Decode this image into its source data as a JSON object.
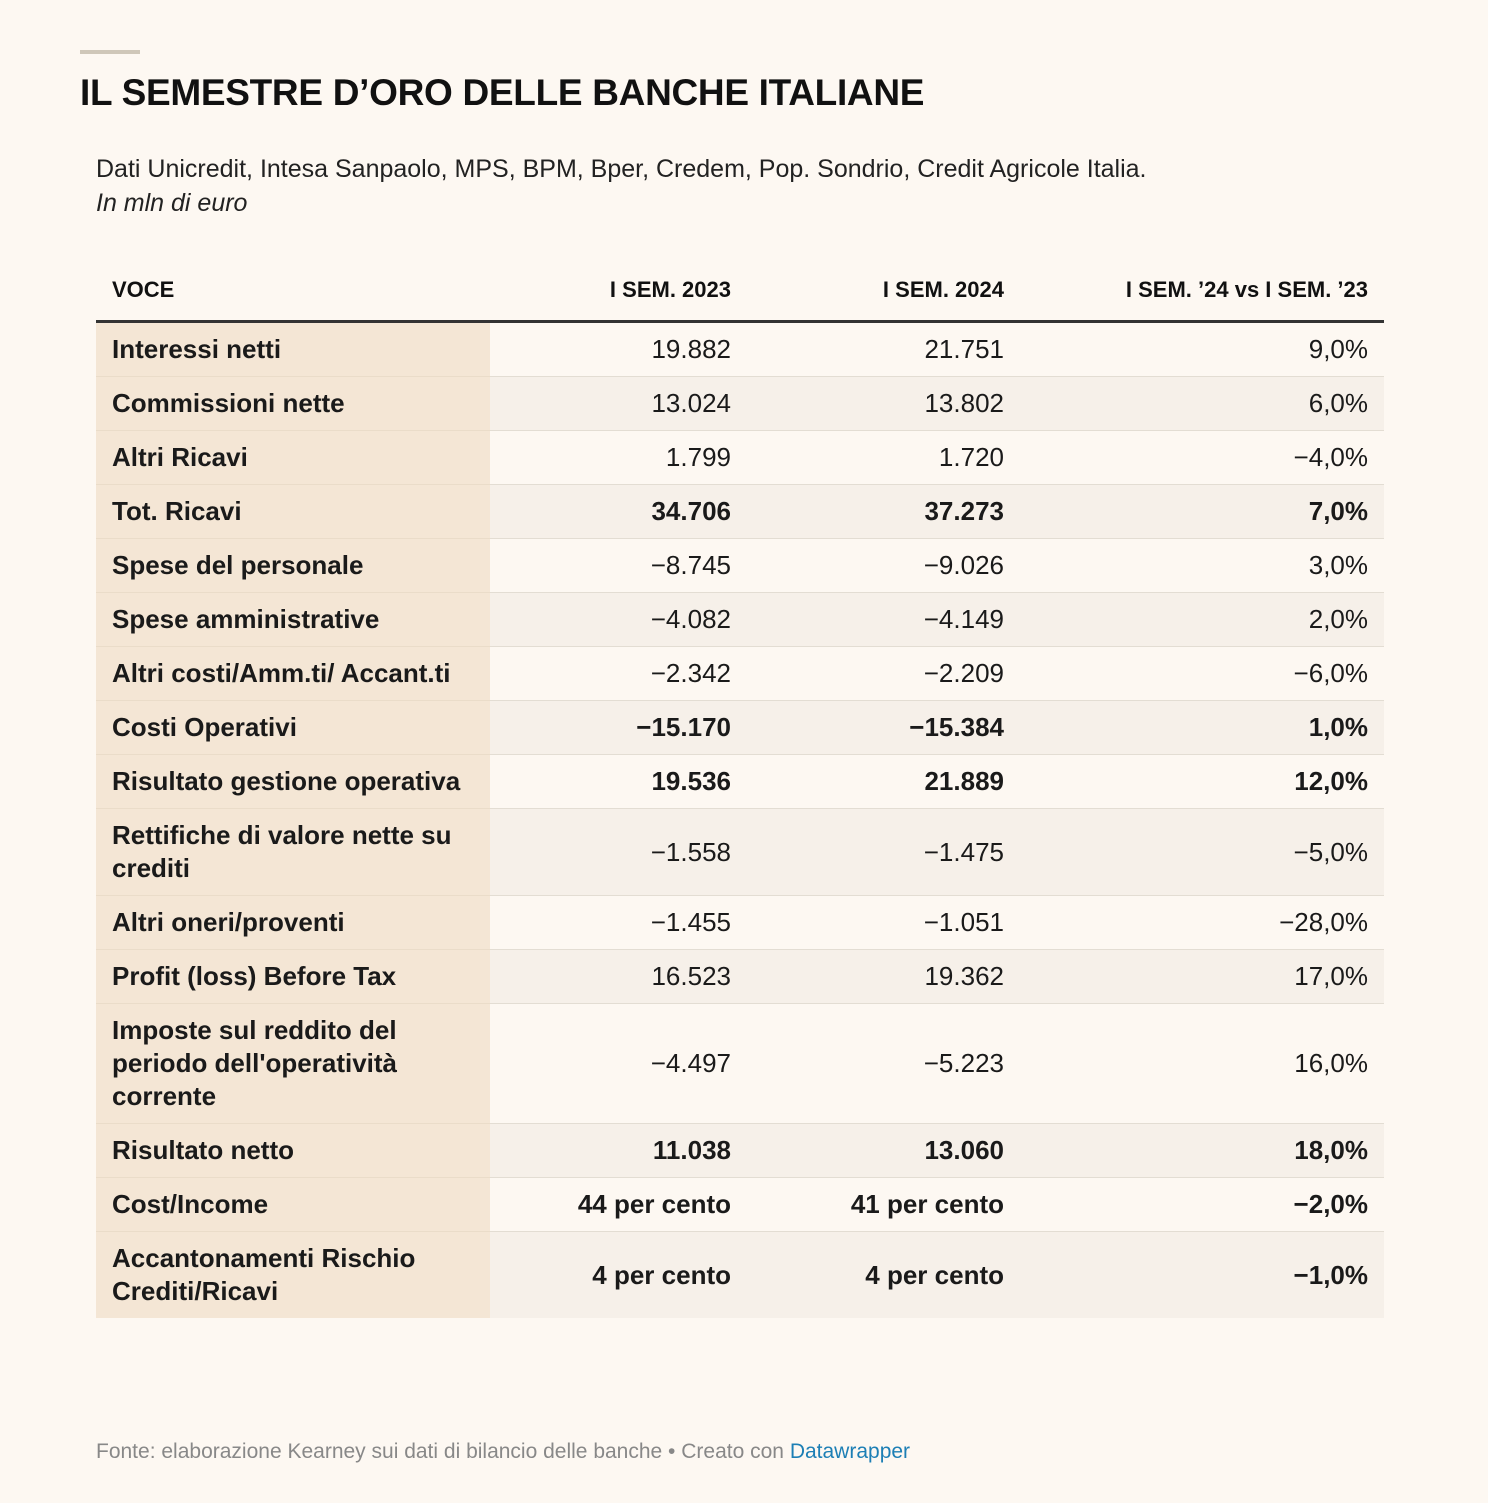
{
  "header": {
    "title": "IL SEMESTRE D’ORO DELLE BANCHE ITALIANE",
    "subtitle": "Dati Unicredit, Intesa Sanpaolo, MPS, BPM, Bper, Credem, Pop. Sondrio, Credit Agricole Italia.",
    "unit": "In mln di euro"
  },
  "chart_data": {
    "type": "table",
    "columns": [
      "VOCE",
      "I SEM. 2023",
      "I SEM. 2024",
      "I SEM. ’24 vs I SEM. ’23"
    ],
    "rows": [
      {
        "voce": "Interessi netti",
        "sem2023": "19.882",
        "sem2024": "21.751",
        "delta": "9,0%",
        "bold": false
      },
      {
        "voce": "Commissioni nette",
        "sem2023": "13.024",
        "sem2024": "13.802",
        "delta": "6,0%",
        "bold": false
      },
      {
        "voce": "Altri Ricavi",
        "sem2023": "1.799",
        "sem2024": "1.720",
        "delta": "−4,0%",
        "bold": false
      },
      {
        "voce": "Tot. Ricavi",
        "sem2023": "34.706",
        "sem2024": "37.273",
        "delta": "7,0%",
        "bold": true
      },
      {
        "voce": "Spese del personale",
        "sem2023": "−8.745",
        "sem2024": "−9.026",
        "delta": "3,0%",
        "bold": false
      },
      {
        "voce": "Spese amministrative",
        "sem2023": "−4.082",
        "sem2024": "−4.149",
        "delta": "2,0%",
        "bold": false
      },
      {
        "voce": "Altri costi/Amm.ti/ Accant.ti",
        "sem2023": "−2.342",
        "sem2024": "−2.209",
        "delta": "−6,0%",
        "bold": false
      },
      {
        "voce": "Costi Operativi",
        "sem2023": "−15.170",
        "sem2024": "−15.384",
        "delta": "1,0%",
        "bold": true
      },
      {
        "voce": "Risultato gestione operativa",
        "sem2023": "19.536",
        "sem2024": "21.889",
        "delta": "12,0%",
        "bold": true
      },
      {
        "voce": "Rettifiche di valore nette su crediti",
        "sem2023": "−1.558",
        "sem2024": "−1.475",
        "delta": "−5,0%",
        "bold": false
      },
      {
        "voce": "Altri oneri/proventi",
        "sem2023": "−1.455",
        "sem2024": "−1.051",
        "delta": "−28,0%",
        "bold": false
      },
      {
        "voce": "Profit (loss) Before Tax",
        "sem2023": "16.523",
        "sem2024": "19.362",
        "delta": "17,0%",
        "bold": false
      },
      {
        "voce": "Imposte sul reddito del periodo dell'operatività corrente",
        "sem2023": "−4.497",
        "sem2024": "−5.223",
        "delta": "16,0%",
        "bold": false
      },
      {
        "voce": "Risultato netto",
        "sem2023": "11.038",
        "sem2024": "13.060",
        "delta": "18,0%",
        "bold": true
      },
      {
        "voce": "Cost/Income",
        "sem2023": "44 per cento",
        "sem2024": "41 per cento",
        "delta": "−2,0%",
        "bold": true
      },
      {
        "voce": "Accantonamenti Rischio Crediti/Ricavi",
        "sem2023": "4 per cento",
        "sem2024": "4 per cento",
        "delta": "−1,0%",
        "bold": true
      }
    ]
  },
  "footer": {
    "source": "Fonte: elaborazione Kearney sui dati di bilancio delle banche",
    "separator": " • ",
    "created_with": "Creato con ",
    "tool": "Datawrapper"
  },
  "colors": {
    "background": "#fdf8f2",
    "label_column": "#f4e6d5",
    "stripe": "#f6f0e9",
    "link": "#1d7fb5"
  }
}
